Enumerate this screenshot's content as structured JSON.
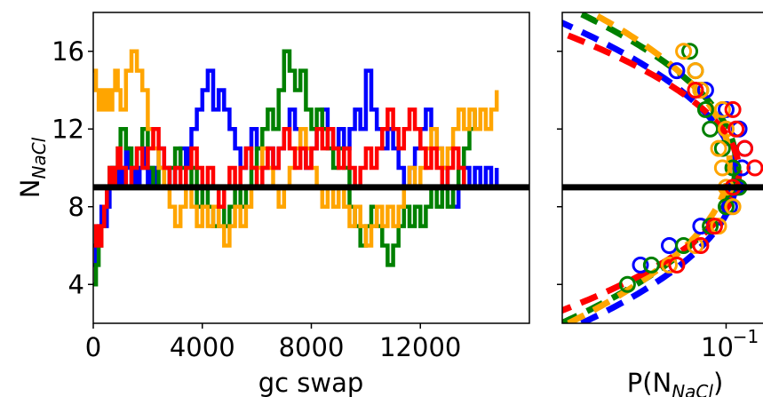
{
  "chart_data": [
    {
      "type": "line",
      "panel": "left",
      "xlabel": "gc swap",
      "ylabel": "N",
      "ylabel_sub": "NaCl",
      "xlim": [
        0,
        16000
      ],
      "ylim": [
        2,
        18
      ],
      "xticks": [
        0,
        4000,
        8000,
        12000
      ],
      "xtick_labels": [
        "0",
        "4000",
        "8000",
        "12000"
      ],
      "yticks": [
        4,
        8,
        12,
        16
      ],
      "ytick_labels": [
        "4",
        "8",
        "12",
        "16"
      ],
      "hline": 9,
      "grid": false,
      "series": [
        {
          "color": "#0000ff",
          "x": [
            0,
            100,
            200,
            300,
            400,
            500,
            600,
            700,
            800,
            900,
            1000,
            1100,
            1200,
            1300,
            1400,
            1500,
            1600,
            1700,
            1800,
            1900,
            2000,
            2100,
            2200,
            2300,
            2400,
            2600,
            2800,
            3000,
            3200,
            3400,
            3500,
            3600,
            3800,
            4000,
            4200,
            4400,
            4600,
            4800,
            5000,
            5200,
            5400,
            5600,
            5800,
            6000,
            6200,
            6400,
            6600,
            6800,
            7000,
            7200,
            7400,
            7600,
            7800,
            8000,
            8200,
            8400,
            8600,
            8800,
            9000,
            9200,
            9400,
            9600,
            9800,
            10000,
            10200,
            10400,
            10600,
            10800,
            11000,
            11200,
            11400,
            11600,
            11800,
            12000,
            12200,
            12400,
            12600,
            12800,
            13000,
            13200,
            13400,
            13600,
            13800,
            14000,
            14200,
            14400,
            14600,
            14800
          ],
          "y": [
            5,
            6,
            7,
            8,
            7,
            8,
            9,
            10,
            9,
            10,
            9,
            10,
            11,
            10,
            9,
            10,
            9,
            10,
            11,
            10,
            9,
            10,
            9,
            10,
            11,
            10,
            9,
            10,
            11,
            10,
            11,
            12,
            13,
            14,
            15,
            13,
            14,
            13,
            12,
            11,
            10,
            11,
            12,
            11,
            10,
            11,
            10,
            11,
            12,
            13,
            12,
            11,
            10,
            11,
            12,
            13,
            12,
            11,
            12,
            11,
            12,
            13,
            12,
            15,
            13,
            12,
            11,
            12,
            11,
            10,
            9,
            10,
            11,
            12,
            13,
            12,
            11,
            10,
            9,
            8,
            9,
            10,
            9,
            10,
            9,
            10,
            9,
            10
          ]
        },
        {
          "color": "#008000",
          "x": [
            0,
            100,
            200,
            300,
            400,
            500,
            600,
            700,
            800,
            900,
            1000,
            1200,
            1400,
            1600,
            1800,
            2000,
            2200,
            2400,
            2600,
            2800,
            3000,
            3200,
            3400,
            3600,
            3800,
            4000,
            4200,
            4400,
            4600,
            4800,
            5000,
            5200,
            5400,
            5600,
            5800,
            6000,
            6200,
            6400,
            6600,
            6800,
            7000,
            7200,
            7400,
            7600,
            7800,
            8000,
            8200,
            8400,
            8600,
            8800,
            9000,
            9200,
            9400,
            9600,
            9800,
            10000,
            10200,
            10400,
            10600,
            10800,
            11000,
            11200,
            11400,
            11600,
            11800,
            12000,
            12200,
            12400,
            12600,
            12800,
            13000,
            13200,
            13400,
            13600,
            13800,
            14000
          ],
          "y": [
            4,
            5,
            6,
            7,
            8,
            9,
            10,
            9,
            10,
            11,
            12,
            11,
            10,
            11,
            12,
            10,
            9,
            10,
            9,
            10,
            11,
            10,
            9,
            10,
            8,
            9,
            8,
            7,
            8,
            7,
            8,
            9,
            8,
            9,
            10,
            11,
            12,
            13,
            12,
            14,
            16,
            15,
            14,
            15,
            13,
            12,
            13,
            12,
            11,
            10,
            11,
            10,
            8,
            7,
            6,
            7,
            8,
            7,
            6,
            5,
            6,
            7,
            8,
            7,
            8,
            7,
            8,
            9,
            8,
            9,
            8,
            9,
            10,
            11,
            12,
            13
          ]
        },
        {
          "color": "#ffa500",
          "x": [
            0,
            100,
            200,
            300,
            400,
            500,
            600,
            700,
            800,
            900,
            1000,
            1200,
            1400,
            1600,
            1800,
            2000,
            2200,
            2400,
            2600,
            2800,
            3000,
            3200,
            3400,
            3600,
            3800,
            4000,
            4200,
            4400,
            4600,
            4800,
            5000,
            5200,
            5400,
            5600,
            5800,
            6000,
            6200,
            6400,
            6600,
            6800,
            7000,
            7200,
            7400,
            7600,
            7800,
            8000,
            8200,
            8400,
            8600,
            8800,
            9000,
            9200,
            9400,
            9600,
            9800,
            10000,
            10200,
            10400,
            10600,
            10800,
            11000,
            11200,
            11400,
            11600,
            11800,
            12000,
            12200,
            12400,
            12600,
            12800,
            13000,
            13200,
            13400,
            13600,
            13800,
            14000,
            14200,
            14400,
            14600,
            14800
          ],
          "y": [
            15,
            14,
            13,
            14,
            13,
            14,
            13,
            14,
            15,
            14,
            13,
            15,
            16,
            15,
            14,
            12,
            11,
            10,
            9,
            8,
            7,
            8,
            9,
            8,
            7,
            8,
            7,
            8,
            7,
            6,
            7,
            8,
            7,
            8,
            9,
            10,
            11,
            10,
            9,
            8,
            9,
            10,
            11,
            12,
            11,
            10,
            9,
            8,
            9,
            8,
            9,
            8,
            7,
            8,
            7,
            6,
            7,
            8,
            7,
            8,
            7,
            8,
            9,
            10,
            9,
            10,
            11,
            12,
            11,
            10,
            11,
            12,
            13,
            12,
            13,
            12,
            13,
            12,
            13,
            14
          ]
        },
        {
          "color": "#ff0000",
          "x": [
            0,
            100,
            200,
            300,
            400,
            500,
            600,
            700,
            800,
            900,
            1000,
            1200,
            1400,
            1600,
            1800,
            2000,
            2200,
            2400,
            2600,
            2800,
            3000,
            3200,
            3400,
            3600,
            3800,
            4000,
            4200,
            4400,
            4600,
            4800,
            5000,
            5200,
            5400,
            5600,
            5800,
            6000,
            6200,
            6400,
            6600,
            6800,
            7000,
            7200,
            7400,
            7600,
            7800,
            8000,
            8200,
            8400,
            8600,
            8800,
            9000,
            9200,
            9400,
            9600,
            9800,
            10000,
            10200,
            10400,
            10600,
            10800,
            11000,
            11200,
            11400,
            11600,
            11800,
            12000,
            12200,
            12400,
            12600,
            12800,
            13000,
            13200,
            13400,
            13600
          ],
          "y": [
            6,
            7,
            6,
            7,
            8,
            9,
            10,
            9,
            10,
            11,
            10,
            9,
            10,
            11,
            10,
            11,
            12,
            11,
            10,
            9,
            10,
            9,
            10,
            11,
            10,
            9,
            10,
            9,
            8,
            9,
            10,
            9,
            10,
            11,
            10,
            9,
            10,
            11,
            10,
            11,
            12,
            11,
            10,
            11,
            10,
            11,
            12,
            11,
            12,
            11,
            10,
            11,
            10,
            9,
            10,
            11,
            10,
            11,
            12,
            13,
            12,
            11,
            12,
            13,
            12,
            11,
            10,
            11,
            10,
            9,
            10,
            11,
            10,
            9
          ]
        }
      ]
    },
    {
      "type": "scatter",
      "panel": "right",
      "xlabel": "P(N",
      "xlabel_sub": "NaCl",
      "xlabel_end": ")",
      "xscale": "log",
      "xlim": [
        0.01,
        0.2
      ],
      "ylim": [
        2,
        18
      ],
      "xticks": [
        0.1
      ],
      "xtick_labels": [
        "10"
      ],
      "xtick_exp": "−1",
      "hline": 9,
      "series": [
        {
          "color": "#0000ff",
          "points": [
            [
              0.03,
              5
            ],
            [
              0.045,
              6
            ],
            [
              0.07,
              7
            ],
            [
              0.105,
              8
            ],
            [
              0.115,
              9
            ],
            [
              0.125,
              10
            ],
            [
              0.13,
              11
            ],
            [
              0.12,
              12
            ],
            [
              0.1,
              13
            ],
            [
              0.075,
              14
            ],
            [
              0.05,
              15
            ]
          ],
          "fit": {
            "mean": 9.5,
            "sigma": 3.6,
            "amp": 0.115
          }
        },
        {
          "color": "#008000",
          "points": [
            [
              0.025,
              4
            ],
            [
              0.035,
              5
            ],
            [
              0.055,
              6
            ],
            [
              0.08,
              7
            ],
            [
              0.1,
              8
            ],
            [
              0.12,
              9
            ],
            [
              0.11,
              10
            ],
            [
              0.095,
              11
            ],
            [
              0.08,
              12
            ],
            [
              0.075,
              13
            ],
            [
              0.07,
              14
            ],
            [
              0.065,
              15
            ],
            [
              0.06,
              16
            ]
          ],
          "fit": {
            "mean": 10.2,
            "sigma": 3.7,
            "amp": 0.115
          }
        },
        {
          "color": "#ffa500",
          "points": [
            [
              0.045,
              5
            ],
            [
              0.065,
              6
            ],
            [
              0.09,
              7
            ],
            [
              0.11,
              8
            ],
            [
              0.1,
              9
            ],
            [
              0.095,
              10
            ],
            [
              0.09,
              11
            ],
            [
              0.1,
              12
            ],
            [
              0.095,
              13
            ],
            [
              0.07,
              14
            ],
            [
              0.065,
              15
            ],
            [
              0.055,
              16
            ]
          ],
          "fit": {
            "mean": 10.3,
            "sigma": 3.9,
            "amp": 0.105
          }
        },
        {
          "color": "#ff0000",
          "points": [
            [
              0.05,
              5
            ],
            [
              0.07,
              6
            ],
            [
              0.085,
              7
            ],
            [
              0.11,
              9
            ],
            [
              0.15,
              10
            ],
            [
              0.13,
              11
            ],
            [
              0.115,
              12
            ],
            [
              0.11,
              13
            ],
            [
              0.065,
              14
            ]
          ],
          "fit": {
            "mean": 9.8,
            "sigma": 3.2,
            "amp": 0.12
          }
        }
      ]
    }
  ]
}
